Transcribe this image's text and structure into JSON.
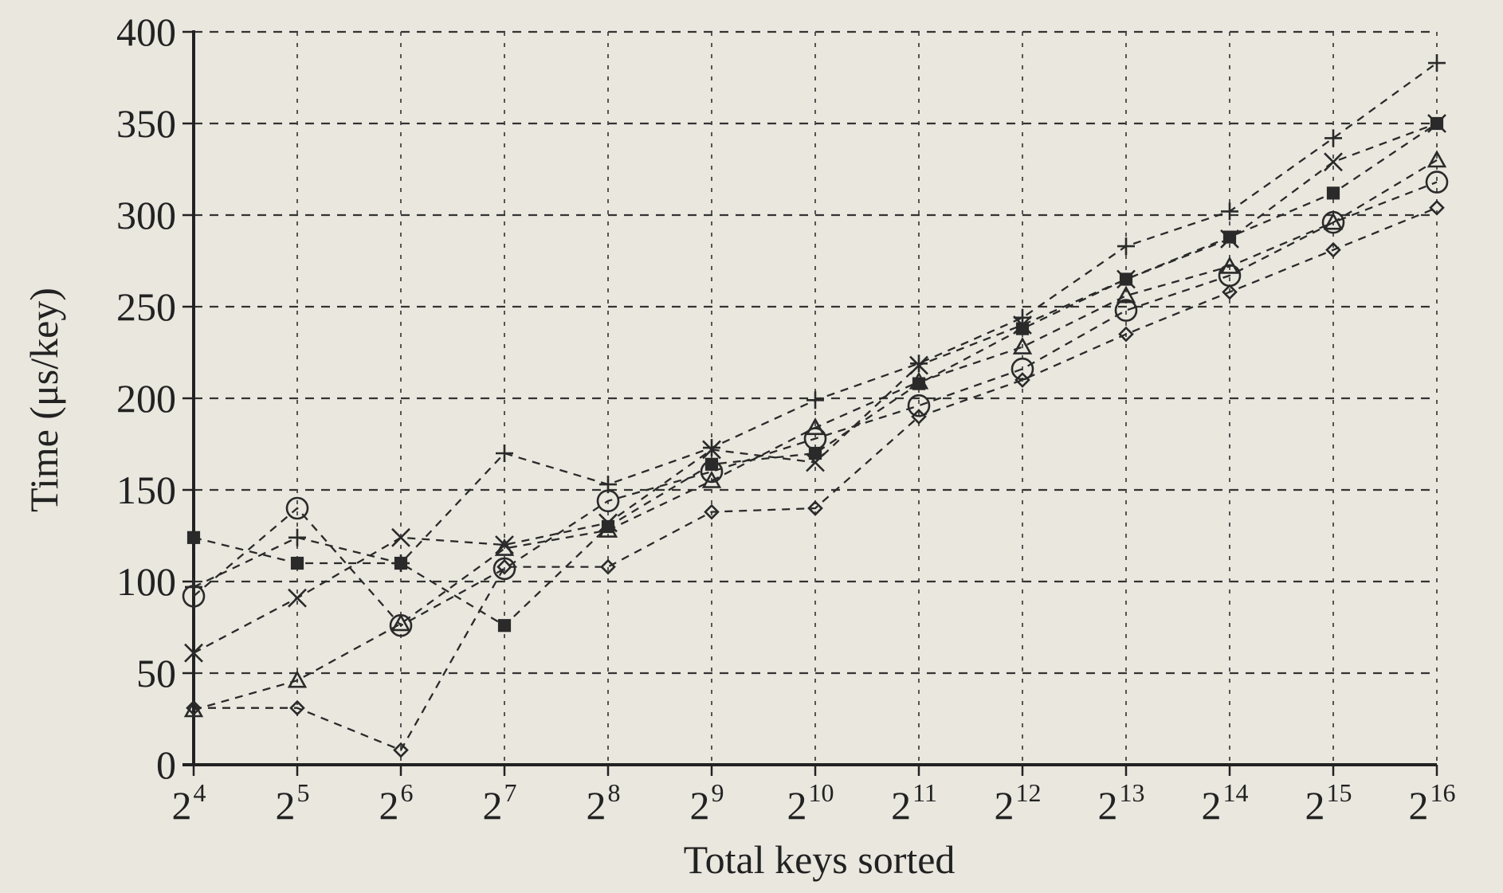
{
  "chart_data": {
    "type": "line",
    "title": "",
    "xlabel": "Total keys sorted",
    "ylabel": "Time (μs/key)",
    "x_scale": "log2",
    "x_ticks": [
      {
        "base": "2",
        "exp": "4"
      },
      {
        "base": "2",
        "exp": "5"
      },
      {
        "base": "2",
        "exp": "6"
      },
      {
        "base": "2",
        "exp": "7"
      },
      {
        "base": "2",
        "exp": "8"
      },
      {
        "base": "2",
        "exp": "9"
      },
      {
        "base": "2",
        "exp": "10"
      },
      {
        "base": "2",
        "exp": "11"
      },
      {
        "base": "2",
        "exp": "12"
      },
      {
        "base": "2",
        "exp": "13"
      },
      {
        "base": "2",
        "exp": "14"
      },
      {
        "base": "2",
        "exp": "15"
      },
      {
        "base": "2",
        "exp": "16"
      }
    ],
    "x": [
      16,
      32,
      64,
      128,
      256,
      512,
      1024,
      2048,
      4096,
      8192,
      16384,
      32768,
      65536
    ],
    "ylim": [
      0,
      400
    ],
    "y_ticks": [
      "0",
      "50",
      "100",
      "150",
      "200",
      "250",
      "300",
      "350",
      "400"
    ],
    "grid": true,
    "legend": "none",
    "series": [
      {
        "marker": "plus",
        "values": [
          97,
          124,
          110,
          170,
          153,
          173,
          199,
          219,
          244,
          283,
          302,
          342,
          383
        ]
      },
      {
        "marker": "cross",
        "values": [
          61,
          91,
          124,
          120,
          132,
          172,
          165,
          218,
          240,
          265,
          287,
          329,
          350
        ]
      },
      {
        "marker": "square",
        "values": [
          124,
          110,
          110,
          76,
          130,
          164,
          170,
          208,
          238,
          265,
          288,
          312,
          350
        ]
      },
      {
        "marker": "triangle",
        "values": [
          30,
          46,
          77,
          118,
          128,
          155,
          184,
          209,
          228,
          256,
          272,
          296,
          330
        ]
      },
      {
        "marker": "circle",
        "values": [
          92,
          140,
          76,
          107,
          144,
          160,
          178,
          196,
          216,
          248,
          267,
          296,
          318
        ]
      },
      {
        "marker": "diamond",
        "values": [
          31,
          31,
          8,
          108,
          108,
          138,
          140,
          190,
          210,
          235,
          258,
          281,
          304
        ]
      }
    ]
  }
}
